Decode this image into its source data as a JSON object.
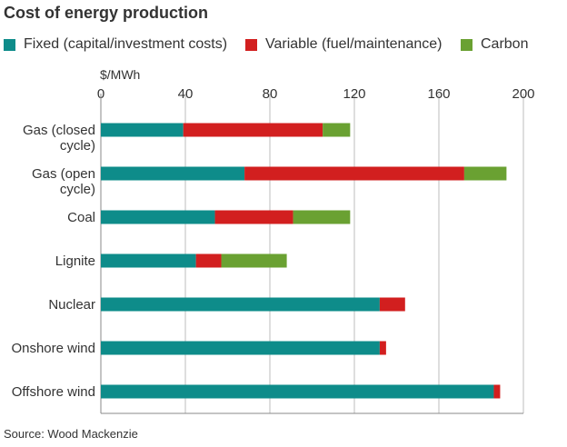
{
  "chart_data": {
    "type": "bar",
    "orientation": "horizontal",
    "stacked": true,
    "title": "Cost of energy production",
    "unit_label": "$/MWh",
    "source": "Source: Wood Mackenzie",
    "xlim": [
      0,
      200
    ],
    "ticks": [
      "0",
      "40",
      "80",
      "120",
      "160",
      "200"
    ],
    "grid": true,
    "legend_position": "top",
    "categories": [
      [
        "Gas (closed",
        "cycle)"
      ],
      [
        "Gas (open",
        "cycle)"
      ],
      [
        "Coal"
      ],
      [
        "Lignite"
      ],
      [
        "Nuclear"
      ],
      [
        "Onshore wind"
      ],
      [
        "Offshore wind"
      ]
    ],
    "series": [
      {
        "name": "Fixed (capital/investment costs)",
        "color": "#0e8c8a",
        "values": [
          39,
          68,
          54,
          45,
          132,
          132,
          186
        ]
      },
      {
        "name": "Variable (fuel/maintenance)",
        "color": "#d21f1f",
        "values": [
          66,
          104,
          37,
          12,
          12,
          3,
          3
        ]
      },
      {
        "name": "Carbon",
        "color": "#6aa132",
        "values": [
          13,
          20,
          27,
          31,
          0,
          0,
          0
        ]
      }
    ]
  }
}
